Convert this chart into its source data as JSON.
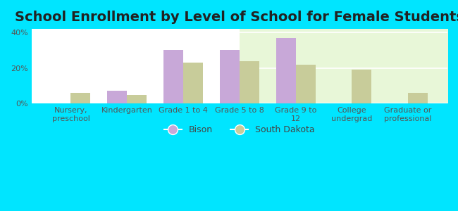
{
  "title": "School Enrollment by Level of School for Female Students",
  "categories": [
    "Nursery,\npreschool",
    "Kindergarten",
    "Grade 1 to 4",
    "Grade 5 to 8",
    "Grade 9 to\n12",
    "College\nundergrad",
    "Graduate or\nprofessional"
  ],
  "bison": [
    0,
    7,
    30,
    30,
    37,
    0,
    0
  ],
  "south_dakota": [
    6,
    5,
    23,
    24,
    22,
    19,
    6
  ],
  "bison_color": "#c8a8d8",
  "sd_color": "#c8cc9a",
  "ylim": [
    0,
    42
  ],
  "yticks": [
    0,
    20,
    40
  ],
  "ytick_labels": [
    "0%",
    "20%",
    "40%"
  ],
  "background_color": "#00e5ff",
  "legend_bison": "Bison",
  "legend_sd": "South Dakota",
  "bar_width": 0.35,
  "title_fontsize": 14,
  "tick_fontsize": 8,
  "legend_fontsize": 9
}
